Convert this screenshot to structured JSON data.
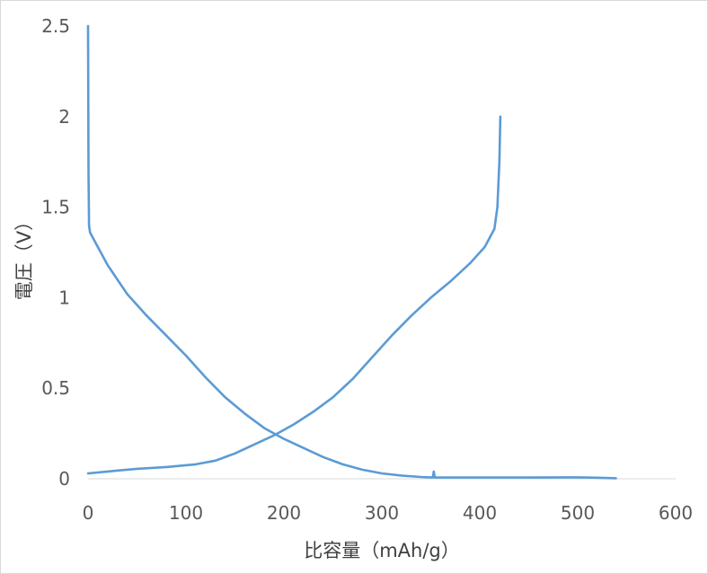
{
  "chart_data": {
    "type": "line",
    "title": "",
    "xlabel": "比容量（mAh/g）",
    "ylabel": "電圧（V）",
    "xlim": [
      0,
      600
    ],
    "ylim": [
      0,
      2.5
    ],
    "x_ticks": [
      "0",
      "100",
      "200",
      "300",
      "400",
      "500",
      "600"
    ],
    "y_ticks": [
      "0",
      "0.5",
      "1",
      "1.5",
      "2",
      "2.5"
    ],
    "grid": false,
    "legend": "none",
    "line_color": "#5b9bd5",
    "series": [
      {
        "points": [
          [
            0,
            2.5
          ],
          [
            0.5,
            1.7
          ],
          [
            1,
            1.4
          ],
          [
            2,
            1.36
          ],
          [
            8,
            1.3
          ],
          [
            20,
            1.18
          ],
          [
            40,
            1.02
          ],
          [
            60,
            0.9
          ],
          [
            80,
            0.79
          ],
          [
            100,
            0.68
          ],
          [
            120,
            0.56
          ],
          [
            140,
            0.45
          ],
          [
            160,
            0.36
          ],
          [
            180,
            0.28
          ],
          [
            200,
            0.22
          ],
          [
            220,
            0.17
          ],
          [
            240,
            0.12
          ],
          [
            260,
            0.08
          ],
          [
            280,
            0.05
          ],
          [
            300,
            0.03
          ],
          [
            320,
            0.018
          ],
          [
            340,
            0.01
          ],
          [
            352,
            0.007
          ],
          [
            353,
            0.04
          ],
          [
            354,
            0.007
          ],
          [
            400,
            0.007
          ],
          [
            450,
            0.007
          ],
          [
            500,
            0.008
          ],
          [
            520,
            0.006
          ],
          [
            539,
            0.003
          ]
        ]
      },
      {
        "points": [
          [
            0,
            0.03
          ],
          [
            20,
            0.04
          ],
          [
            50,
            0.055
          ],
          [
            80,
            0.065
          ],
          [
            110,
            0.08
          ],
          [
            130,
            0.1
          ],
          [
            150,
            0.14
          ],
          [
            170,
            0.19
          ],
          [
            190,
            0.24
          ],
          [
            210,
            0.3
          ],
          [
            230,
            0.37
          ],
          [
            250,
            0.45
          ],
          [
            270,
            0.55
          ],
          [
            290,
            0.67
          ],
          [
            310,
            0.79
          ],
          [
            330,
            0.9
          ],
          [
            350,
            1.0
          ],
          [
            370,
            1.09
          ],
          [
            390,
            1.19
          ],
          [
            405,
            1.28
          ],
          [
            415,
            1.38
          ],
          [
            418,
            1.5
          ],
          [
            420,
            1.75
          ],
          [
            421,
            2.0
          ]
        ]
      }
    ]
  }
}
